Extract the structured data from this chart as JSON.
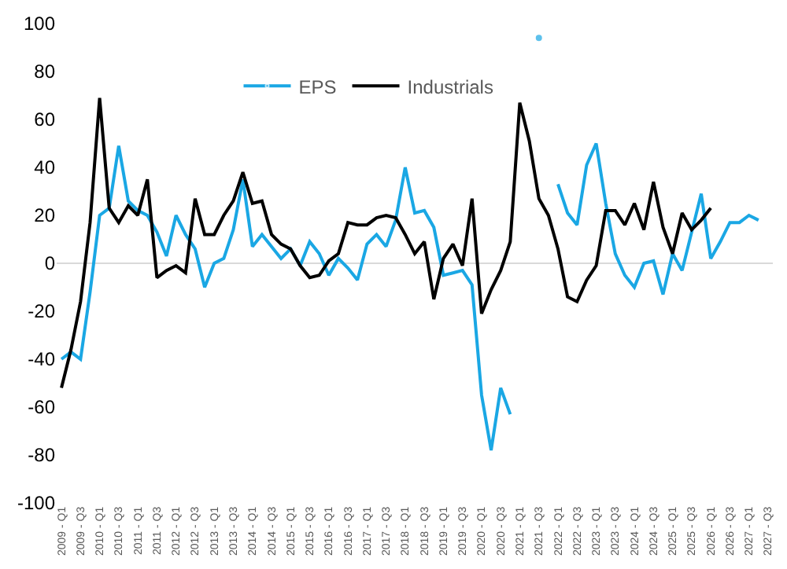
{
  "chart_data": {
    "type": "line",
    "categories": [
      "2009 - Q1",
      null,
      "2009 - Q3",
      null,
      "2010 - Q1",
      null,
      "2010 - Q3",
      null,
      "2011 - Q1",
      null,
      "2011 - Q3",
      null,
      "2012 - Q1",
      null,
      "2012 - Q3",
      null,
      "2013 - Q1",
      null,
      "2013 - Q3",
      null,
      "2014 - Q1",
      null,
      "2014 - Q3",
      null,
      "2015 - Q1",
      null,
      "2015 - Q3",
      null,
      "2016 - Q1",
      null,
      "2016 - Q3",
      null,
      "2017 - Q1",
      null,
      "2017 - Q3",
      null,
      "2018 - Q1",
      null,
      "2018 - Q3",
      null,
      "2019 - Q1",
      null,
      "2019 - Q3",
      null,
      "2020 - Q1",
      null,
      "2020 - Q3",
      null,
      "2021 - Q1",
      null,
      "2021 - Q3",
      null,
      "2022 - Q1",
      null,
      "2022 - Q3",
      null,
      "2023 - Q1",
      null,
      "2023 - Q3",
      null,
      "2024 - Q1",
      null,
      "2024 - Q3",
      null,
      "2025 - Q1",
      null,
      "2025 - Q3",
      null,
      "2026 - Q1",
      null,
      "2026 - Q3",
      null,
      "2027 - Q1",
      null,
      "2027 - Q3"
    ],
    "series": [
      {
        "name": "EPS",
        "color": "#1aa7e4",
        "values": [
          -40,
          -37,
          -40,
          -12,
          20,
          23,
          49,
          26,
          22,
          20,
          13,
          3,
          20,
          12,
          6,
          -10,
          0,
          2,
          14,
          35,
          7,
          12,
          7,
          2,
          6,
          -1,
          9,
          4,
          -5,
          2,
          -2,
          -7,
          8,
          12,
          7,
          18,
          40,
          21,
          22,
          15,
          -5,
          -4,
          -3,
          -9,
          -55,
          -78,
          -52,
          -63,
          null,
          null,
          94,
          null,
          33,
          21,
          16,
          41,
          50,
          25,
          4,
          -5,
          -10,
          0,
          1,
          -13,
          4,
          -3,
          13,
          29,
          2,
          9,
          17,
          17,
          20,
          18,
          null
        ]
      },
      {
        "name": "Industrials",
        "color": "#000000",
        "values": [
          -52,
          -36,
          -16,
          17,
          69,
          23,
          17,
          24,
          20,
          35,
          -6,
          -3,
          -1,
          -4,
          27,
          12,
          12,
          20,
          26,
          38,
          25,
          26,
          12,
          8,
          6,
          -1,
          -6,
          -5,
          1,
          4,
          17,
          16,
          16,
          19,
          20,
          19,
          12,
          4,
          9,
          -15,
          2,
          8,
          -1,
          27,
          -21,
          -11,
          -3,
          9,
          67,
          51,
          27,
          20,
          6,
          -14,
          -16,
          -7,
          -1,
          22,
          22,
          16,
          25,
          14,
          34,
          15,
          4,
          21,
          14,
          18,
          23,
          null,
          null,
          null,
          null,
          null,
          null
        ]
      }
    ],
    "ylim": [
      -100,
      100
    ],
    "yticks": [
      -100,
      -80,
      -60,
      -40,
      -20,
      0,
      20,
      40,
      60,
      80,
      100
    ],
    "ref_lines": [
      {
        "axis": "y",
        "value": 0,
        "color": "#d9d9d9"
      }
    ],
    "grid": false,
    "legend": "top",
    "line_style": "solid",
    "marker": "none"
  }
}
